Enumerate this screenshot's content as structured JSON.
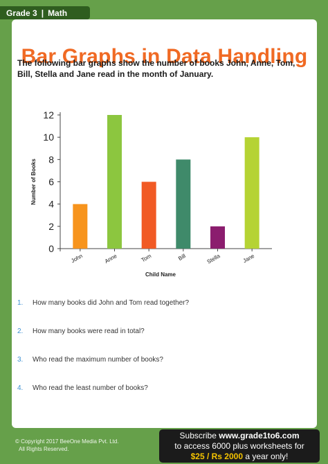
{
  "header": {
    "grade": "Grade 3",
    "subject": "Math"
  },
  "title": "Bar Graphs in Data Handling",
  "intro": "The following bar graphs show the number of books John, Anne, Tom, Bill, Stella and Jane read in the month of January.",
  "chart_data": {
    "type": "bar",
    "categories": [
      "John",
      "Anne",
      "Tom",
      "Bill",
      "Stella",
      "Jane"
    ],
    "values": [
      4,
      12,
      6,
      8,
      2,
      10
    ],
    "colors": [
      "#f7941d",
      "#8cc63f",
      "#f15a24",
      "#3f8a6a",
      "#8b1d6e",
      "#b5d334"
    ],
    "xlabel": "Child Name",
    "ylabel": "Number of Books",
    "ylim": [
      0,
      12
    ],
    "yticks": [
      "0",
      "2",
      "4",
      "6",
      "8",
      "10",
      "12"
    ],
    "grid": false
  },
  "questions": [
    {
      "num": "1.",
      "text": "How many books did John and Tom read together?"
    },
    {
      "num": "2.",
      "text": "How many books were read in total?"
    },
    {
      "num": "3.",
      "text": "Who read the maximum number of books?"
    },
    {
      "num": "4.",
      "text": "Who read the least number of books?"
    }
  ],
  "footer": {
    "copyright_line1": "© Copyright 2017 BeeOne Media Pvt. Ltd.",
    "copyright_line2": "All Rights Reserved.",
    "subscribe_prefix": "Subscribe",
    "subscribe_site": "www.grade1to6.com",
    "subscribe_line2": "to access 6000 plus worksheets for",
    "subscribe_price": "$25 / Rs 2000",
    "subscribe_suffix": "a year only!"
  },
  "colors": {
    "background": "#66a04a",
    "title": "#f06a24",
    "question_number": "#3b8fd0",
    "price": "#f5c400"
  }
}
